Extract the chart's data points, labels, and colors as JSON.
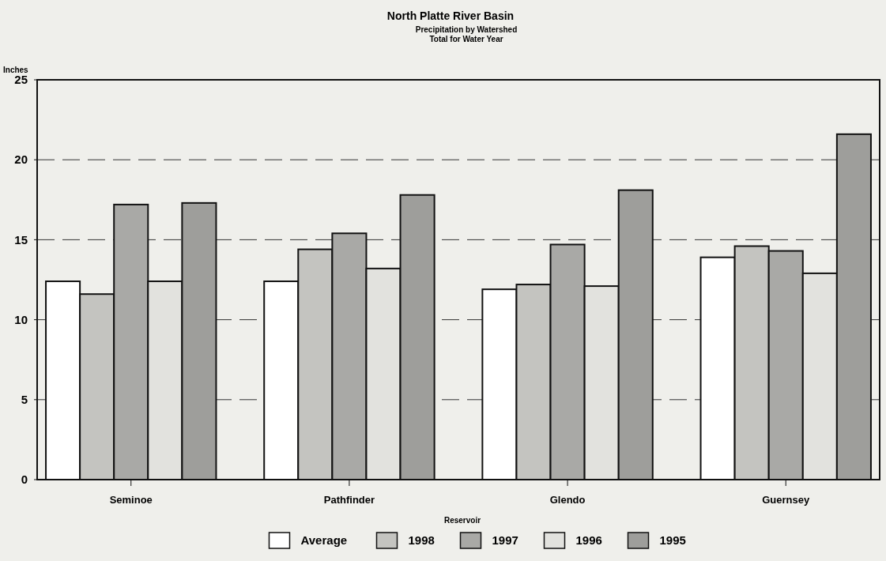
{
  "chart_data": {
    "type": "bar",
    "title": "North Platte River Basin",
    "subtitle": "Precipitation by Watershed\nTotal for Water Year",
    "ylabel": "Inches",
    "xlabel": "Reservoir",
    "categories": [
      "Seminoe",
      "Pathfinder",
      "Glendo",
      "Guernsey"
    ],
    "series": [
      {
        "name": "Average",
        "color": "#ffffff",
        "values": [
          12.4,
          12.4,
          11.9,
          13.9
        ]
      },
      {
        "name": "1998",
        "color": "#c4c4c0",
        "values": [
          11.6,
          14.4,
          12.2,
          14.6
        ]
      },
      {
        "name": "1997",
        "color": "#a9a9a6",
        "values": [
          17.2,
          15.4,
          14.7,
          14.3
        ]
      },
      {
        "name": "1996",
        "color": "#e2e2de",
        "values": [
          12.4,
          13.2,
          12.1,
          12.9
        ]
      },
      {
        "name": "1995",
        "color": "#9e9e9b",
        "values": [
          17.3,
          17.8,
          18.1,
          21.6
        ]
      }
    ],
    "ylim": [
      0,
      25
    ],
    "yticks": [
      0,
      5,
      10,
      15,
      20,
      25
    ],
    "grid": "y",
    "legend": "bottom"
  }
}
